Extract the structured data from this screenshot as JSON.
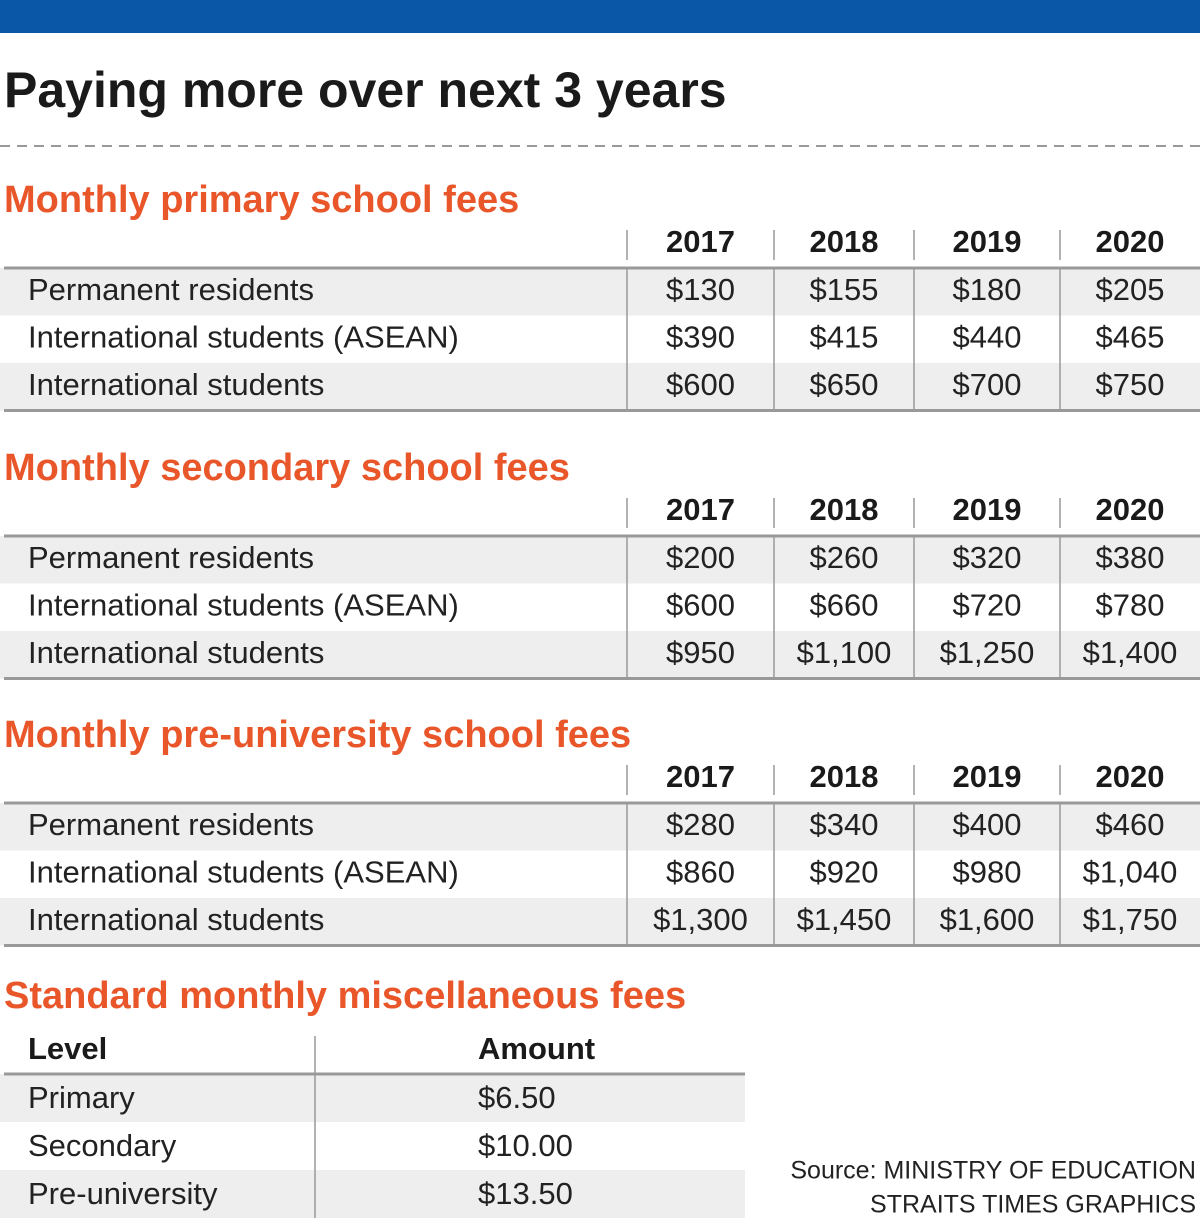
{
  "header": {
    "title": "Paying more over next 3 years"
  },
  "sections": [
    {
      "title": "Monthly primary school fees",
      "columns": [
        "2017",
        "2018",
        "2019",
        "2020"
      ],
      "rows": [
        {
          "label": "Permanent residents",
          "values": [
            "$130",
            "$155",
            "$180",
            "$205"
          ]
        },
        {
          "label": "International students (ASEAN)",
          "values": [
            "$390",
            "$415",
            "$440",
            "$465"
          ]
        },
        {
          "label": "International students",
          "values": [
            "$600",
            "$650",
            "$700",
            "$750"
          ]
        }
      ]
    },
    {
      "title": "Monthly secondary school fees",
      "columns": [
        "2017",
        "2018",
        "2019",
        "2020"
      ],
      "rows": [
        {
          "label": "Permanent residents",
          "values": [
            "$200",
            "$260",
            "$320",
            "$380"
          ]
        },
        {
          "label": "International students (ASEAN)",
          "values": [
            "$600",
            "$660",
            "$720",
            "$780"
          ]
        },
        {
          "label": "International students",
          "values": [
            "$950",
            "$1,100",
            "$1,250",
            "$1,400"
          ]
        }
      ]
    },
    {
      "title": "Monthly pre-university school fees",
      "columns": [
        "2017",
        "2018",
        "2019",
        "2020"
      ],
      "rows": [
        {
          "label": "Permanent residents",
          "values": [
            "$280",
            "$340",
            "$400",
            "$460"
          ]
        },
        {
          "label": "International students (ASEAN)",
          "values": [
            "$860",
            "$920",
            "$980",
            "$1,040"
          ]
        },
        {
          "label": "International students",
          "values": [
            "$1,300",
            "$1,450",
            "$1,600",
            "$1,750"
          ]
        }
      ]
    }
  ],
  "misc": {
    "title": "Standard monthly miscellaneous fees",
    "columns": [
      "Level",
      "Amount"
    ],
    "rows": [
      [
        "Primary",
        "$6.50"
      ],
      [
        "Secondary",
        "$10.00"
      ],
      [
        "Pre-university",
        "$13.50"
      ]
    ]
  },
  "source": [
    "Source: MINISTRY OF EDUCATION",
    "STRAITS TIMES GRAPHICS"
  ]
}
